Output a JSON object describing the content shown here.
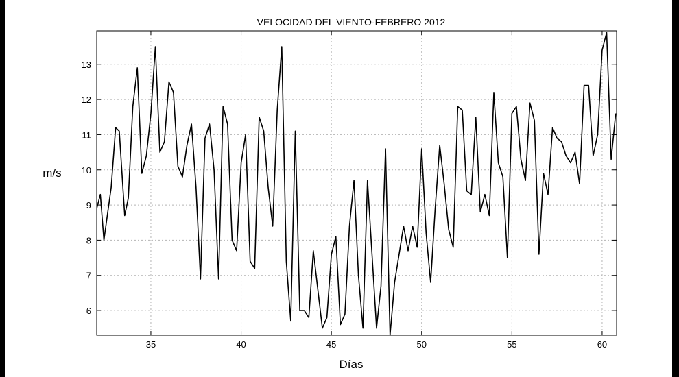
{
  "chart_data": {
    "type": "line",
    "title": "VELOCIDAD DEL VIENTO-FEBRERO 2012",
    "xlabel": "Días",
    "ylabel": "m/s",
    "xlim": [
      32,
      60.8
    ],
    "ylim": [
      5.3,
      13.95
    ],
    "xticks": [
      35,
      40,
      45,
      50,
      55,
      60
    ],
    "yticks": [
      6,
      7,
      8,
      9,
      10,
      11,
      12,
      13
    ],
    "grid": true,
    "line_color": "#000000",
    "grid_color": "#b4b4b4",
    "series": [
      {
        "x": [
          32.0,
          32.2,
          32.4,
          32.8,
          33.05,
          33.25,
          33.55,
          33.75,
          34.0,
          34.25,
          34.5,
          34.75,
          35.0,
          35.25,
          35.5,
          35.75,
          36.0,
          36.25,
          36.5,
          36.75,
          37.0,
          37.25,
          37.5,
          37.75,
          38.0,
          38.25,
          38.5,
          38.75,
          39.0,
          39.25,
          39.5,
          39.75,
          40.0,
          40.25,
          40.5,
          40.75,
          41.0,
          41.25,
          41.5,
          41.75,
          42.0,
          42.25,
          42.5,
          42.75,
          43.0,
          43.25,
          43.5,
          43.75,
          44.0,
          44.25,
          44.5,
          44.75,
          45.0,
          45.25,
          45.5,
          45.75,
          46.0,
          46.25,
          46.5,
          46.75,
          47.0,
          47.25,
          47.5,
          47.75,
          48.0,
          48.25,
          48.5,
          48.75,
          49.0,
          49.25,
          49.5,
          49.75,
          50.0,
          50.25,
          50.5,
          50.75,
          51.0,
          51.25,
          51.5,
          51.75,
          52.0,
          52.25,
          52.5,
          52.75,
          53.0,
          53.25,
          53.5,
          53.75,
          54.0,
          54.25,
          54.5,
          54.75,
          55.0,
          55.25,
          55.5,
          55.75,
          56.0,
          56.25,
          56.5,
          56.75,
          57.0,
          57.25,
          57.5,
          57.75,
          58.0,
          58.25,
          58.5,
          58.75,
          59.0,
          59.25,
          59.5,
          59.75,
          60.0,
          60.25,
          60.5,
          60.75
        ],
        "values": [
          8.9,
          9.3,
          8.0,
          9.5,
          11.2,
          11.1,
          8.7,
          9.2,
          11.8,
          12.9,
          9.9,
          10.4,
          11.6,
          13.5,
          10.5,
          10.8,
          12.5,
          12.2,
          10.1,
          9.8,
          10.7,
          11.3,
          9.5,
          6.9,
          10.9,
          11.3,
          10.0,
          6.9,
          11.8,
          11.3,
          8.0,
          7.7,
          10.2,
          11.0,
          7.4,
          7.2,
          11.5,
          11.1,
          9.5,
          8.4,
          11.7,
          13.5,
          7.4,
          5.7,
          11.1,
          6.0,
          6.0,
          5.8,
          7.7,
          6.6,
          5.5,
          5.8,
          7.6,
          8.1,
          5.6,
          5.9,
          8.4,
          9.7,
          7.0,
          5.5,
          9.7,
          7.6,
          5.5,
          6.7,
          10.6,
          5.3,
          6.8,
          7.6,
          8.4,
          7.7,
          8.4,
          7.8,
          10.6,
          8.2,
          6.8,
          8.9,
          10.7,
          9.6,
          8.3,
          7.8,
          11.8,
          11.7,
          9.4,
          9.3,
          11.5,
          8.8,
          9.3,
          8.7,
          12.2,
          10.2,
          9.8,
          7.5,
          11.6,
          11.8,
          10.3,
          9.7,
          11.9,
          11.4,
          7.6,
          9.9,
          9.3,
          11.2,
          10.9,
          10.8,
          10.4,
          10.2,
          10.5,
          9.6,
          12.4,
          12.4,
          10.4,
          11.0,
          13.4,
          13.9,
          10.3,
          11.6
        ]
      }
    ]
  }
}
